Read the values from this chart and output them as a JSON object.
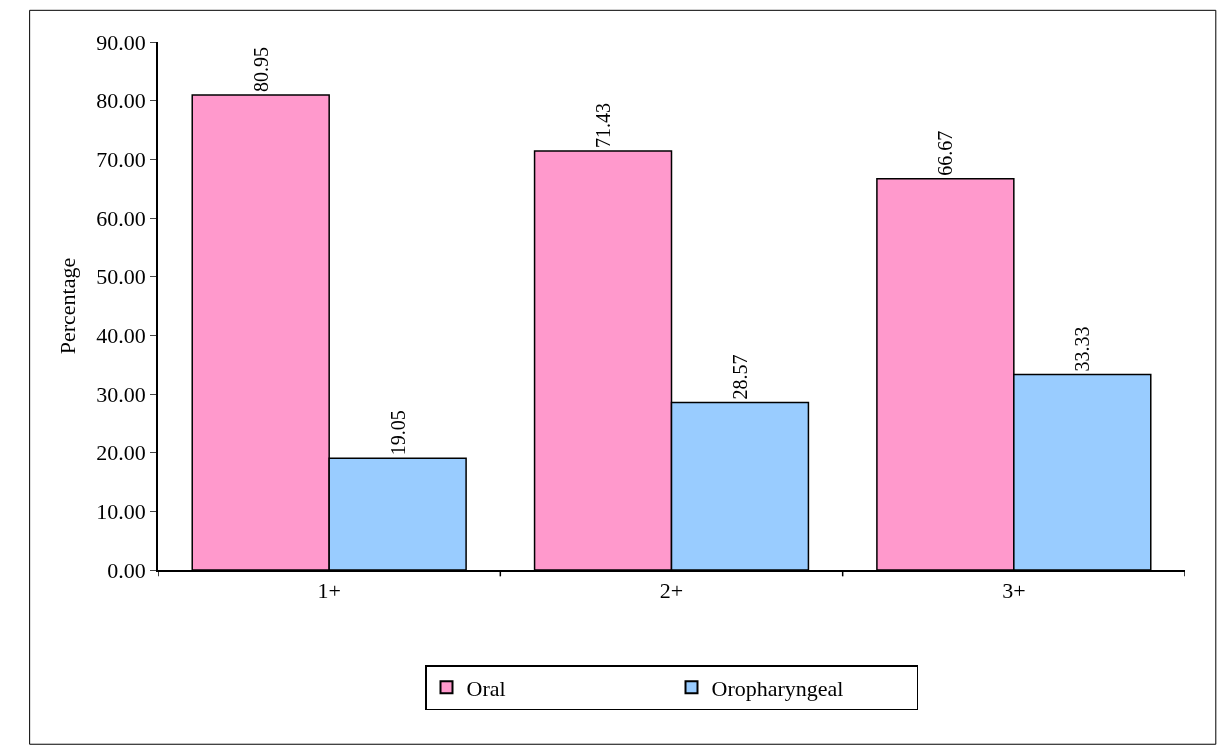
{
  "chart_data": {
    "type": "bar",
    "ylabel": "Percentage",
    "categories": [
      "1+",
      "2+",
      "3+"
    ],
    "series": [
      {
        "name": "Oral",
        "color": "#ff99cc",
        "values": [
          80.95,
          71.43,
          66.67
        ]
      },
      {
        "name": "Oropharyngeal",
        "color": "#99ccff",
        "values": [
          19.05,
          28.57,
          33.33
        ]
      }
    ],
    "ylim": [
      0,
      90
    ],
    "yticks": [
      {
        "value": 0,
        "label": "0.00"
      },
      {
        "value": 10,
        "label": "10.00"
      },
      {
        "value": 20,
        "label": "20.00"
      },
      {
        "value": 30,
        "label": "30.00"
      },
      {
        "value": 40,
        "label": "40.00"
      },
      {
        "value": 50,
        "label": "50.00"
      },
      {
        "value": 60,
        "label": "60.00"
      },
      {
        "value": 70,
        "label": "70.00"
      },
      {
        "value": 80,
        "label": "80.00"
      },
      {
        "value": 90,
        "label": "90.00"
      }
    ],
    "data_labels": true,
    "legend": "bottom"
  }
}
